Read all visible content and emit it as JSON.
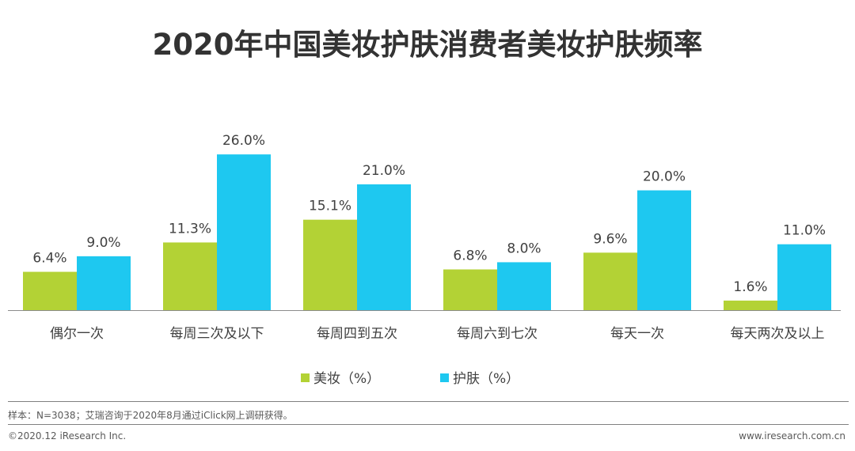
{
  "page": {
    "title": "2020年中国美妆护肤消费者美妆护肤频率",
    "note": "样本：N=3038；艾瑞咨询于2020年8月通过iClick网上调研获得。",
    "copyright": "©2020.12 iResearch Inc.",
    "website": "www.iresearch.com.cn"
  },
  "chart_data": {
    "type": "bar",
    "title": "2020年中国美妆护肤消费者美妆护肤频率",
    "categories": [
      "偶尔一次",
      "每周三次及以下",
      "每周四到五次",
      "每周六到七次",
      "每天一次",
      "每天两次及以上"
    ],
    "series": [
      {
        "name": "美妆（%）",
        "color": "#b3d235",
        "values": [
          6.4,
          11.3,
          15.1,
          6.8,
          9.6,
          1.6
        ],
        "labels": [
          "6.4%",
          "11.3%",
          "15.1%",
          "6.8%",
          "9.6%",
          "1.6%"
        ]
      },
      {
        "name": "护肤（%）",
        "color": "#1ec8f0",
        "values": [
          9.0,
          26.0,
          21.0,
          8.0,
          20.0,
          11.0
        ],
        "labels": [
          "9.0%",
          "26.0%",
          "21.0%",
          "8.0%",
          "20.0%",
          "11.0%"
        ]
      }
    ],
    "ylim": [
      0,
      28
    ],
    "grid": false,
    "legend_position": "bottom-center",
    "xlabel": "",
    "ylabel": ""
  }
}
